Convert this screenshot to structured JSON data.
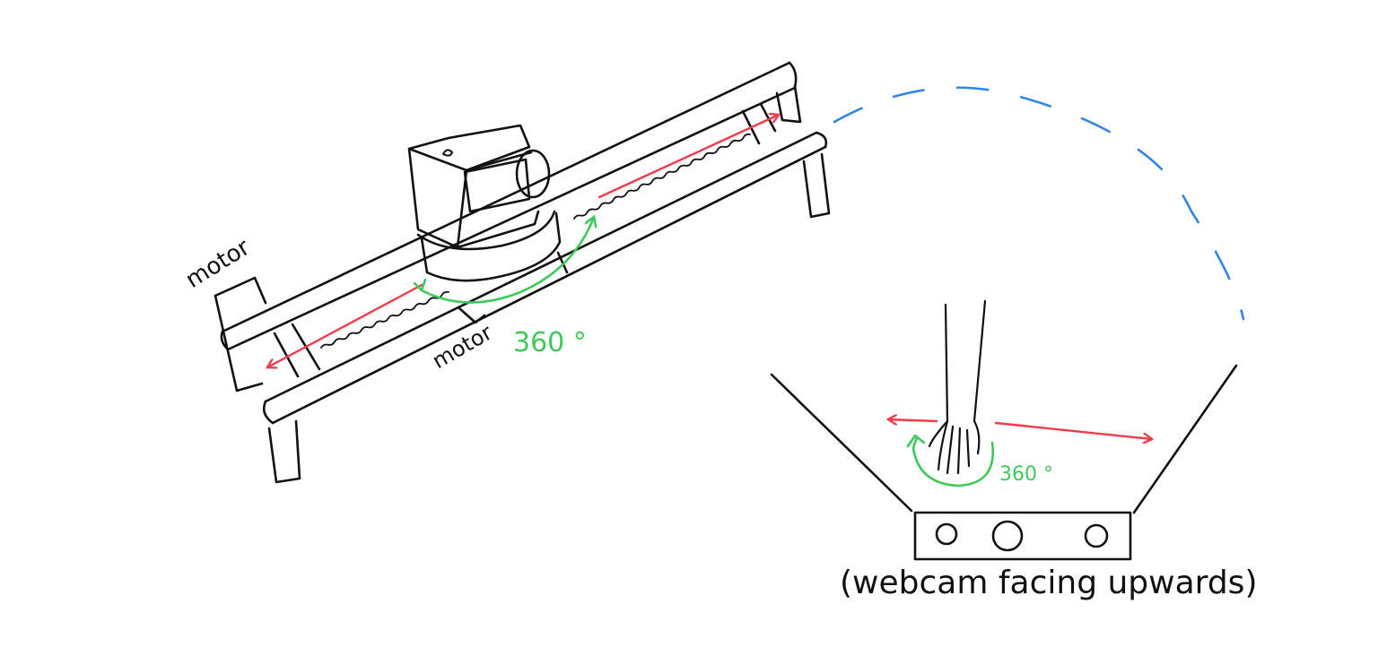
{
  "labels": {
    "motor_left": "motor",
    "motor_center": "motor",
    "rotation_camera": "360 °",
    "rotation_hand": "360 °",
    "webcam_caption": "(webcam facing upwards)"
  },
  "colors": {
    "ink": "#111111",
    "linear_motion": "#ef3b4a",
    "rotation": "#3ec95a",
    "trajectory": "#2f86e6"
  }
}
